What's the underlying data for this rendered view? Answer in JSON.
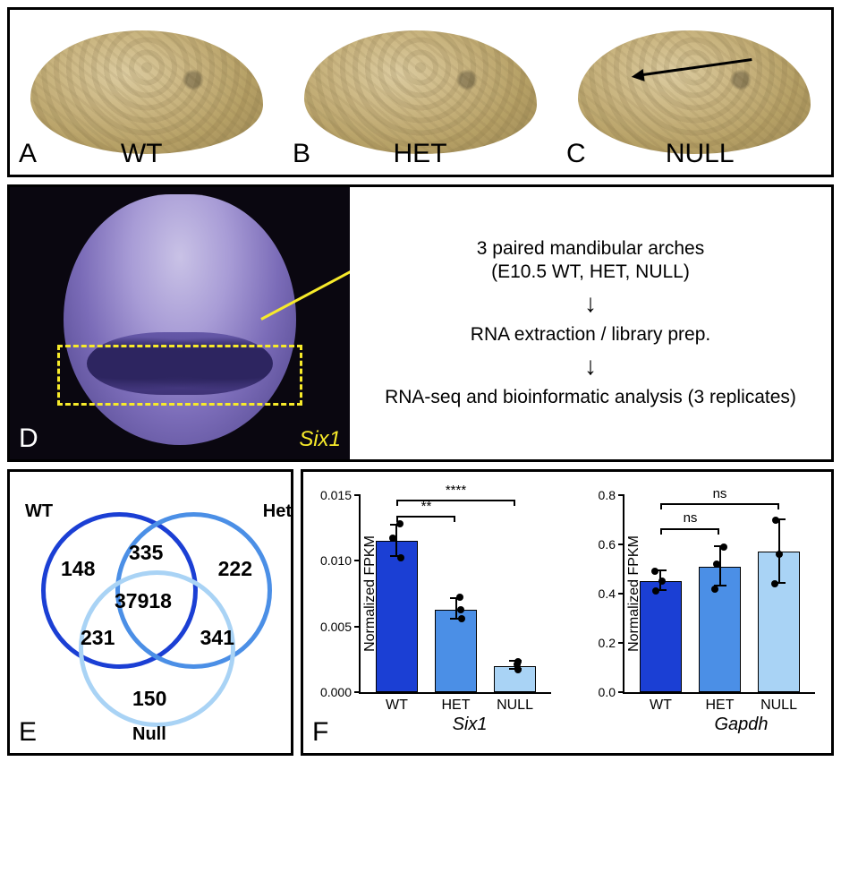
{
  "panels": {
    "A": {
      "letter": "A",
      "genotype": "WT"
    },
    "B": {
      "letter": "B",
      "genotype": "HET"
    },
    "C": {
      "letter": "C",
      "genotype": "NULL"
    }
  },
  "panelD": {
    "letter": "D",
    "gene_label": "Six1",
    "flow": {
      "step1": "3 paired mandibular arches\n(E10.5 WT, HET, NULL)",
      "step2": "RNA extraction / library prep.",
      "step3": "RNA-seq and bioinformatic analysis (3 replicates)"
    },
    "dashed_box_color": "#f7ea2a",
    "arrow_color": "#f7ea2a"
  },
  "venn": {
    "letter": "E",
    "labels": {
      "wt": "WT",
      "het": "Het",
      "null": "Null"
    },
    "circle_colors": {
      "wt": "#1b3fd4",
      "het": "#4b8fe6",
      "null": "#a9d3f5"
    },
    "values": {
      "wt_only": 148,
      "het_only": 222,
      "null_only": 150,
      "wt_het": 335,
      "wt_null": 231,
      "het_null": 341,
      "all": 37918
    }
  },
  "charts": {
    "letter": "F",
    "yaxis_title": "Normalized FPKM",
    "bar_colors": {
      "wt": "#1b3fd4",
      "het": "#4b8fe6",
      "null": "#a9d3f5"
    },
    "categories": [
      "WT",
      "HET",
      "NULL"
    ],
    "six1": {
      "gene": "Six1",
      "ylim": [
        0.0,
        0.015
      ],
      "yticks": [
        0.0,
        0.005,
        0.01,
        0.015
      ],
      "ytick_labels": [
        "0.000",
        "0.005",
        "0.010",
        "0.015"
      ],
      "values": {
        "wt": 0.0115,
        "het": 0.0063,
        "null": 0.002
      },
      "err": {
        "wt": 0.0012,
        "het": 0.0008,
        "null": 0.0003
      },
      "points": {
        "wt": [
          0.0102,
          0.0117,
          0.0128
        ],
        "het": [
          0.0056,
          0.0063,
          0.0072
        ],
        "null": [
          0.0017,
          0.0021,
          0.0023
        ]
      },
      "sig": [
        {
          "from": "wt",
          "to": "het",
          "label": "**",
          "y": 0.0133
        },
        {
          "from": "wt",
          "to": "null",
          "label": "****",
          "y": 0.0145
        }
      ]
    },
    "gapdh": {
      "gene": "Gapdh",
      "ylim": [
        0.0,
        0.8
      ],
      "yticks": [
        0.0,
        0.2,
        0.4,
        0.6,
        0.8
      ],
      "ytick_labels": [
        "0.0",
        "0.2",
        "0.4",
        "0.6",
        "0.8"
      ],
      "values": {
        "wt": 0.45,
        "het": 0.51,
        "null": 0.57
      },
      "err": {
        "wt": 0.04,
        "het": 0.08,
        "null": 0.13
      },
      "points": {
        "wt": [
          0.41,
          0.45,
          0.49
        ],
        "het": [
          0.42,
          0.52,
          0.59
        ],
        "null": [
          0.44,
          0.56,
          0.7
        ]
      },
      "sig": [
        {
          "from": "wt",
          "to": "het",
          "label": "ns",
          "y": 0.66
        },
        {
          "from": "wt",
          "to": "null",
          "label": "ns",
          "y": 0.76
        }
      ]
    }
  },
  "colors": {
    "panel_border": "#000000",
    "embryo_base": "#c8b27a",
    "ish_purple": "#7b6cb8",
    "text": "#000000"
  }
}
